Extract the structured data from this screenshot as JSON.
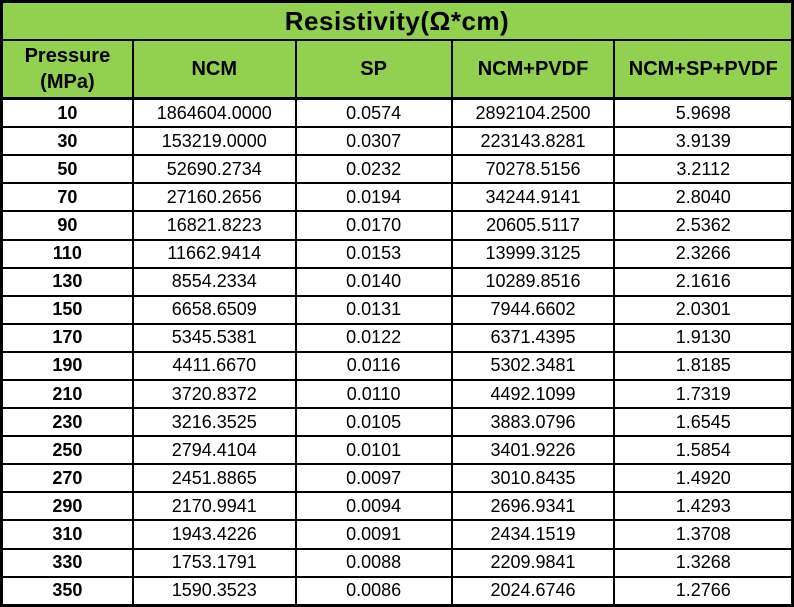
{
  "chart_data": {
    "type": "table",
    "title": "Resistivity(Ω*cm)",
    "columns": [
      "Pressure\n(MPa)",
      "NCM",
      "SP",
      "NCM+PVDF",
      "NCM+SP+PVDF"
    ],
    "column_units": {
      "pressure": "MPa",
      "values": "Ω*cm"
    },
    "rows": [
      [
        "10",
        "1864604.0000",
        "0.0574",
        "2892104.2500",
        "5.9698"
      ],
      [
        "30",
        "153219.0000",
        "0.0307",
        "223143.8281",
        "3.9139"
      ],
      [
        "50",
        "52690.2734",
        "0.0232",
        "70278.5156",
        "3.2112"
      ],
      [
        "70",
        "27160.2656",
        "0.0194",
        "34244.9141",
        "2.8040"
      ],
      [
        "90",
        "16821.8223",
        "0.0170",
        "20605.5117",
        "2.5362"
      ],
      [
        "110",
        "11662.9414",
        "0.0153",
        "13999.3125",
        "2.3266"
      ],
      [
        "130",
        "8554.2334",
        "0.0140",
        "10289.8516",
        "2.1616"
      ],
      [
        "150",
        "6658.6509",
        "0.0131",
        "7944.6602",
        "2.0301"
      ],
      [
        "170",
        "5345.5381",
        "0.0122",
        "6371.4395",
        "1.9130"
      ],
      [
        "190",
        "4411.6670",
        "0.0116",
        "5302.3481",
        "1.8185"
      ],
      [
        "210",
        "3720.8372",
        "0.0110",
        "4492.1099",
        "1.7319"
      ],
      [
        "230",
        "3216.3525",
        "0.0105",
        "3883.0796",
        "1.6545"
      ],
      [
        "250",
        "2794.4104",
        "0.0101",
        "3401.9226",
        "1.5854"
      ],
      [
        "270",
        "2451.8865",
        "0.0097",
        "3010.8435",
        "1.4920"
      ],
      [
        "290",
        "2170.9941",
        "0.0094",
        "2696.9341",
        "1.4293"
      ],
      [
        "310",
        "1943.4226",
        "0.0091",
        "2434.1519",
        "1.3708"
      ],
      [
        "330",
        "1753.1791",
        "0.0088",
        "2209.9841",
        "1.3268"
      ],
      [
        "350",
        "1590.3523",
        "0.0086",
        "2024.6746",
        "1.2766"
      ]
    ],
    "layout": {
      "grid": "on",
      "header_rows": 2,
      "title_spans_all_columns": true
    }
  },
  "colors": {
    "header_bg": "#92d050",
    "border": "#000000",
    "cell_bg": "#ffffff",
    "text": "#000000"
  }
}
